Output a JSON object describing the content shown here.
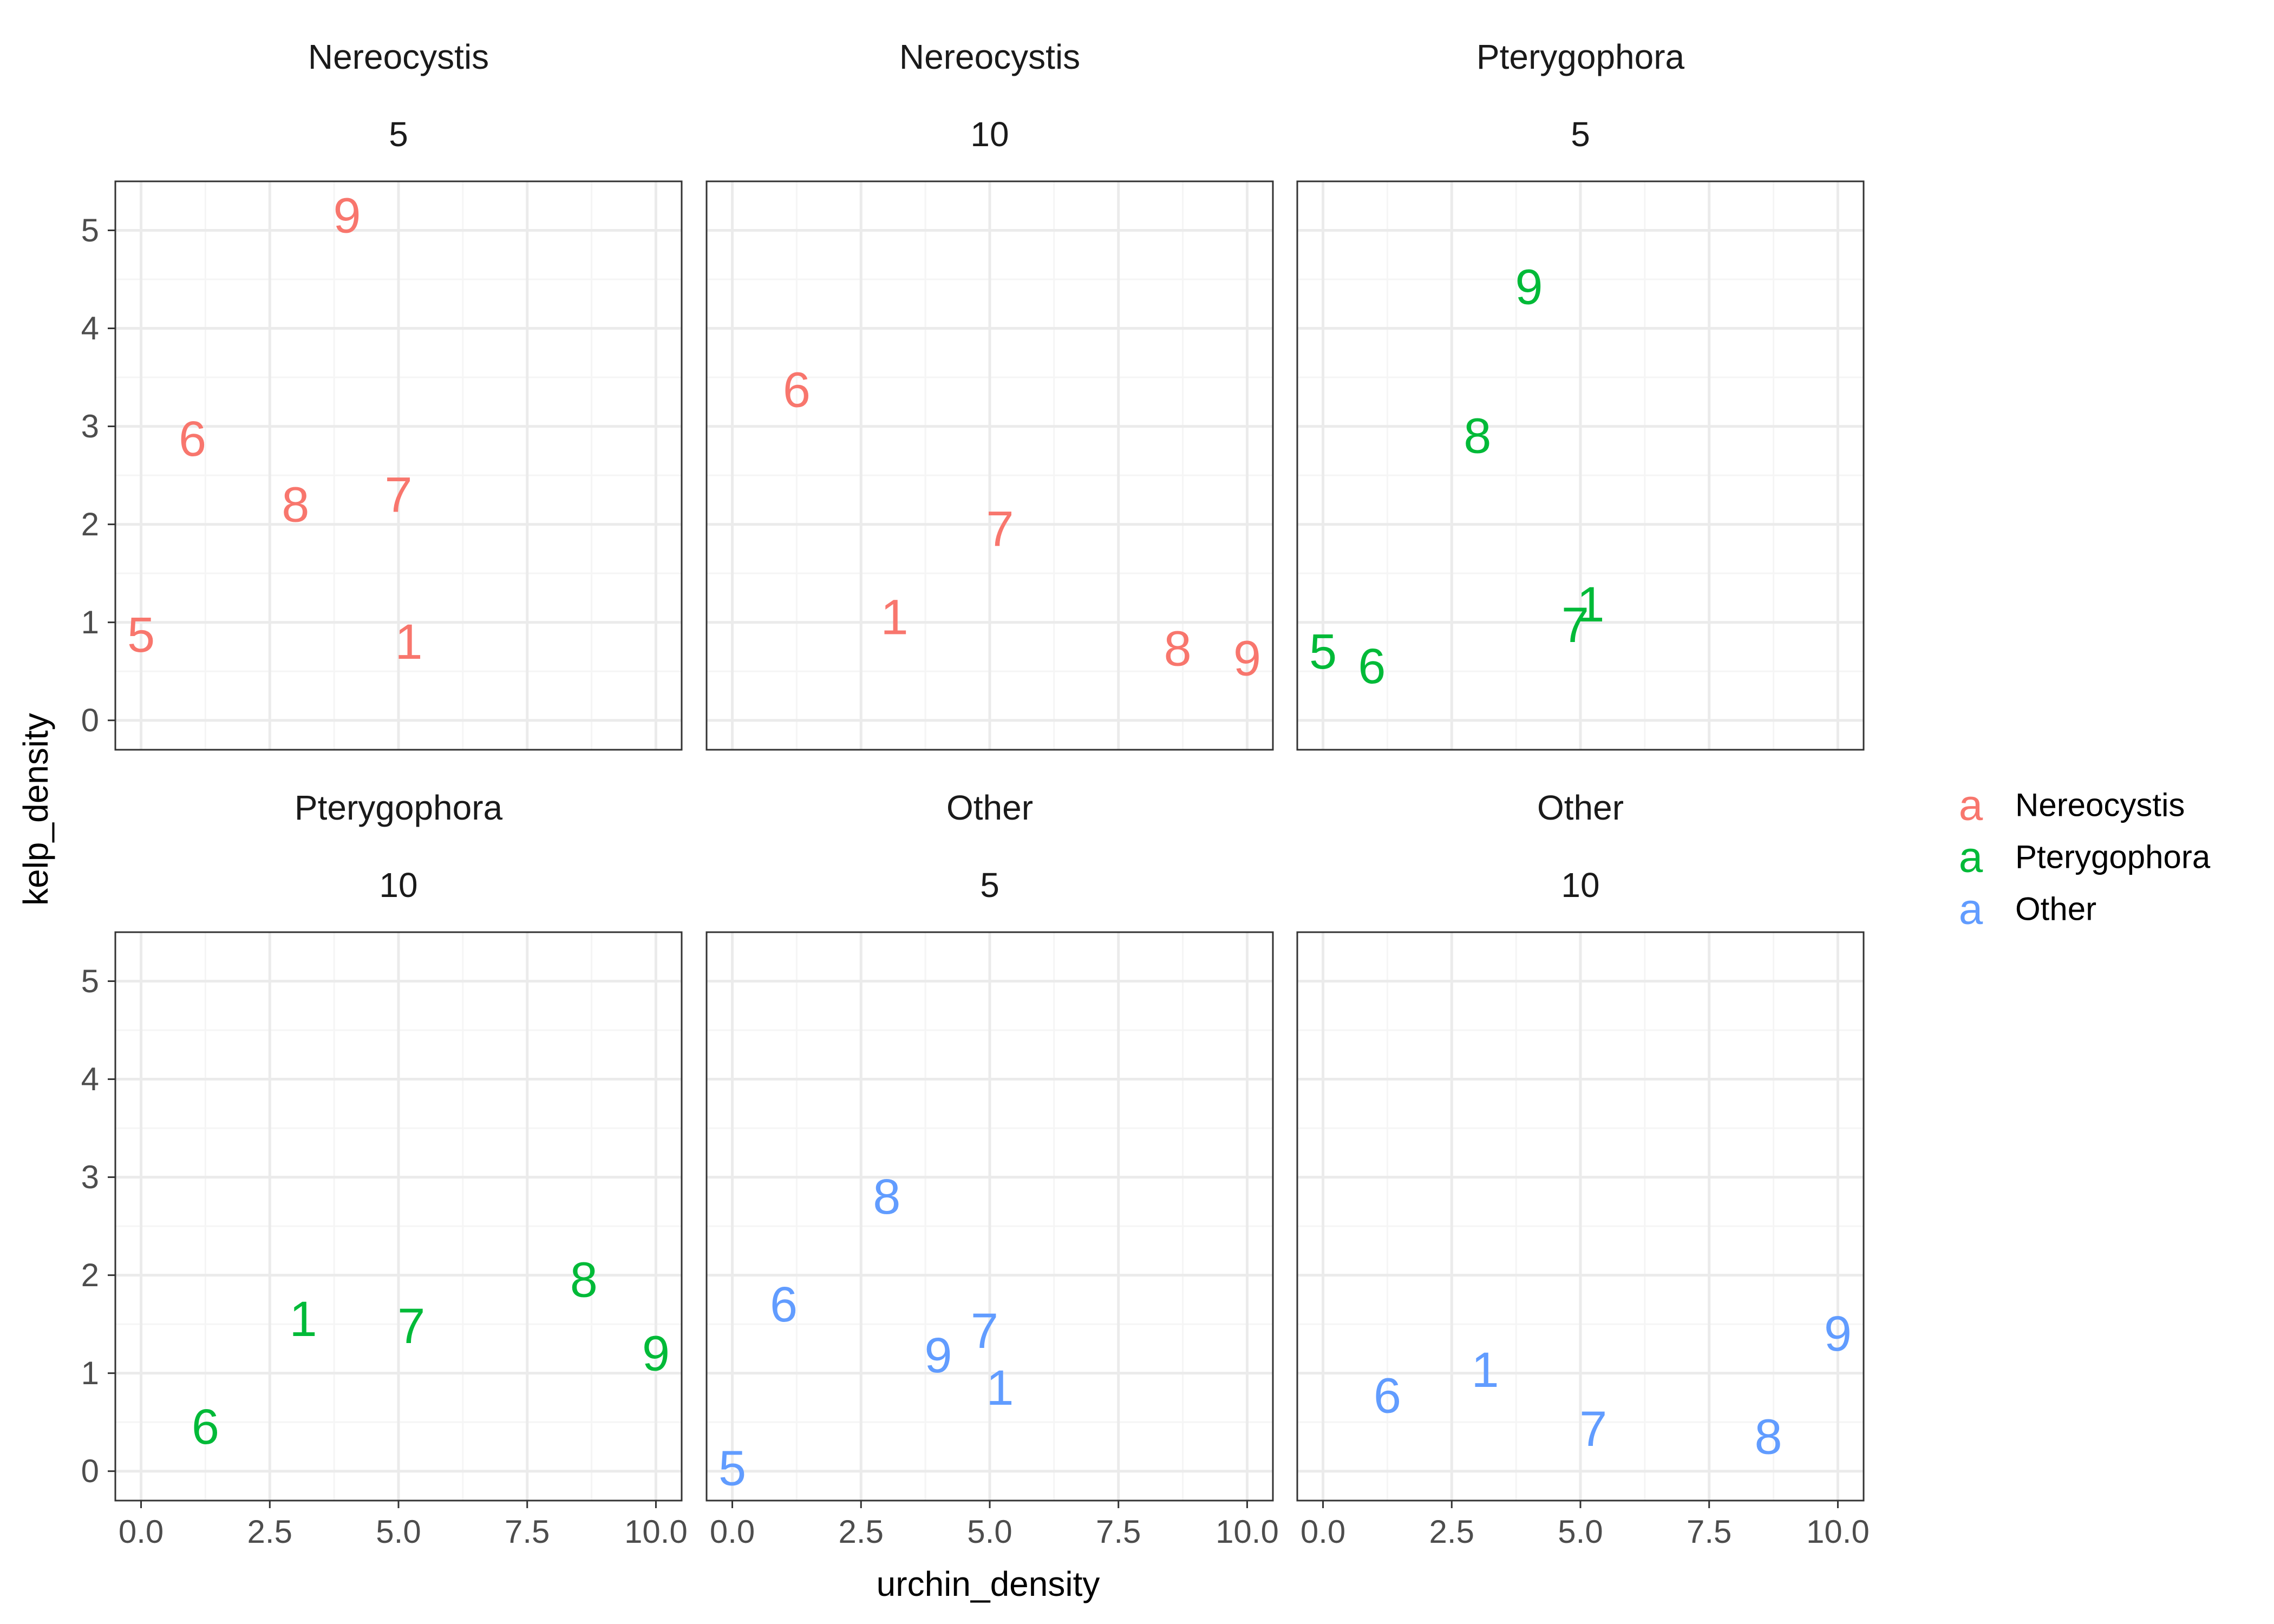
{
  "colors": {
    "Nereocystis": "#F8766D",
    "Pterygophora": "#00BA38",
    "Other": "#619CFF",
    "grid_major": "#EBEBEB",
    "grid_minor": "#F5F5F5",
    "panel_border": "#333333",
    "background": "#FFFFFF"
  },
  "chart_data": {
    "type": "scatter",
    "marker": "text labels",
    "xlabel": "urchin_density",
    "ylabel": "kelp_density",
    "xlim": [
      0,
      10
    ],
    "ylim": [
      0,
      5.2
    ],
    "x_ticks": [
      0.0,
      2.5,
      5.0,
      7.5,
      10.0
    ],
    "x_tick_labels": [
      "0.0",
      "2.5",
      "5.0",
      "7.5",
      "10.0"
    ],
    "y_ticks": [
      0,
      1,
      2,
      3,
      4,
      5
    ],
    "y_tick_labels": [
      "0",
      "1",
      "2",
      "3",
      "4",
      "5"
    ],
    "grid": true,
    "legend": {
      "placement": "right",
      "key_glyph": "a",
      "entries": [
        "Nereocystis",
        "Pterygophora",
        "Other"
      ]
    },
    "facets": [
      {
        "strip_top": "Nereocystis",
        "strip_bottom": "5",
        "group": "Nereocystis",
        "points": [
          {
            "label": "9",
            "x": 4.0,
            "y": 5.15
          },
          {
            "label": "6",
            "x": 1.0,
            "y": 2.87
          },
          {
            "label": "8",
            "x": 3.0,
            "y": 2.2
          },
          {
            "label": "7",
            "x": 5.0,
            "y": 2.3
          },
          {
            "label": "5",
            "x": 0.0,
            "y": 0.87
          },
          {
            "label": "1",
            "x": 5.2,
            "y": 0.8
          }
        ]
      },
      {
        "strip_top": "Nereocystis",
        "strip_bottom": "10",
        "group": "Nereocystis",
        "points": [
          {
            "label": "6",
            "x": 1.25,
            "y": 3.37
          },
          {
            "label": "7",
            "x": 5.2,
            "y": 1.95
          },
          {
            "label": "1",
            "x": 3.15,
            "y": 1.05
          },
          {
            "label": "8",
            "x": 8.65,
            "y": 0.73
          },
          {
            "label": "9",
            "x": 10.0,
            "y": 0.63
          }
        ]
      },
      {
        "strip_top": "Pterygophora",
        "strip_bottom": "5",
        "group": "Pterygophora",
        "points": [
          {
            "label": "9",
            "x": 4.0,
            "y": 4.42
          },
          {
            "label": "8",
            "x": 3.0,
            "y": 2.9
          },
          {
            "label": "1",
            "x": 5.2,
            "y": 1.18
          },
          {
            "label": "7",
            "x": 4.9,
            "y": 0.97
          },
          {
            "label": "5",
            "x": 0.0,
            "y": 0.7
          },
          {
            "label": "6",
            "x": 0.95,
            "y": 0.55
          }
        ]
      },
      {
        "strip_top": "Pterygophora",
        "strip_bottom": "10",
        "group": "Pterygophora",
        "points": [
          {
            "label": "8",
            "x": 8.6,
            "y": 1.95
          },
          {
            "label": "1",
            "x": 3.15,
            "y": 1.55
          },
          {
            "label": "7",
            "x": 5.25,
            "y": 1.48
          },
          {
            "label": "9",
            "x": 10.0,
            "y": 1.2
          },
          {
            "label": "6",
            "x": 1.25,
            "y": 0.45
          }
        ]
      },
      {
        "strip_top": "Other",
        "strip_bottom": "5",
        "group": "Other",
        "points": [
          {
            "label": "8",
            "x": 3.0,
            "y": 2.8
          },
          {
            "label": "6",
            "x": 1.0,
            "y": 1.7
          },
          {
            "label": "7",
            "x": 4.9,
            "y": 1.43
          },
          {
            "label": "9",
            "x": 4.0,
            "y": 1.18
          },
          {
            "label": "1",
            "x": 5.2,
            "y": 0.85
          },
          {
            "label": "5",
            "x": 0.0,
            "y": 0.03
          }
        ]
      },
      {
        "strip_top": "Other",
        "strip_bottom": "10",
        "group": "Other",
        "points": [
          {
            "label": "9",
            "x": 10.0,
            "y": 1.4
          },
          {
            "label": "1",
            "x": 3.15,
            "y": 1.03
          },
          {
            "label": "6",
            "x": 1.25,
            "y": 0.77
          },
          {
            "label": "7",
            "x": 5.25,
            "y": 0.43
          },
          {
            "label": "8",
            "x": 8.65,
            "y": 0.35
          }
        ]
      }
    ]
  }
}
